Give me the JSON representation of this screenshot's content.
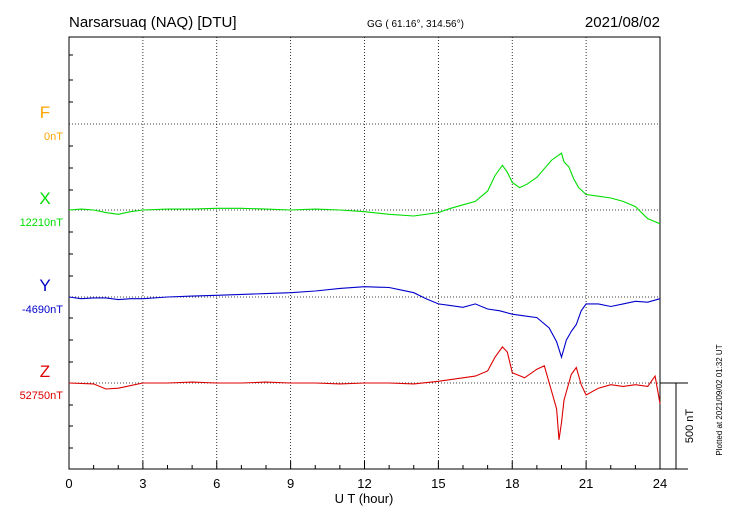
{
  "header": {
    "station": "Narsarsuaq (NAQ)  [DTU]",
    "coords": "GG ( 61.16°, 314.56°)",
    "date": "2021/08/02"
  },
  "footer": {
    "plotted": "Plotted at 2021/09/02 01:32 UT"
  },
  "chart_data": {
    "type": "line",
    "xlabel": "U T (hour)",
    "xlim": [
      0,
      24
    ],
    "xticks": [
      "0",
      "3",
      "6",
      "9",
      "12",
      "15",
      "18",
      "21",
      "24"
    ],
    "grid": true,
    "scale_bar": "500 nT",
    "series": [
      {
        "name": "F",
        "baseline_label": "0nT",
        "color": "#ffa500",
        "values": []
      },
      {
        "name": "X",
        "baseline_label": "12210nT",
        "color": "#00dd00",
        "x": [
          0,
          0.5,
          1,
          1.5,
          2,
          2.5,
          3,
          4,
          5,
          6,
          7,
          8,
          9,
          10,
          11,
          12,
          13,
          14,
          15,
          15.5,
          16,
          16.5,
          17,
          17.3,
          17.6,
          17.8,
          18,
          18.3,
          18.6,
          19,
          19.3,
          19.6,
          20,
          20.1,
          20.3,
          20.5,
          20.7,
          21,
          21.5,
          22,
          22.5,
          23,
          23.5,
          24
        ],
        "values": [
          0,
          5,
          0,
          -15,
          -25,
          -10,
          0,
          5,
          5,
          10,
          10,
          5,
          0,
          5,
          0,
          -10,
          -25,
          -35,
          -15,
          10,
          30,
          50,
          110,
          200,
          260,
          220,
          160,
          130,
          150,
          190,
          240,
          290,
          330,
          280,
          250,
          180,
          130,
          90,
          80,
          70,
          50,
          20,
          -50,
          -80
        ]
      },
      {
        "name": "Y",
        "baseline_label": "-4690nT",
        "color": "#0000cc",
        "x": [
          0,
          0.5,
          1,
          1.5,
          2,
          2.5,
          3,
          4,
          5,
          6,
          7,
          8,
          9,
          10,
          11,
          12,
          13,
          13.5,
          14,
          14.5,
          15,
          15.5,
          16,
          16.5,
          17,
          17.5,
          18,
          18.5,
          19,
          19.5,
          19.8,
          20,
          20.2,
          20.4,
          20.6,
          20.8,
          21,
          21.5,
          22,
          22.5,
          23,
          23.5,
          24
        ],
        "values": [
          0,
          -10,
          -5,
          -5,
          -15,
          -10,
          -10,
          0,
          5,
          10,
          15,
          20,
          25,
          35,
          50,
          60,
          55,
          40,
          25,
          -10,
          -40,
          -50,
          -60,
          -40,
          -70,
          -80,
          -100,
          -110,
          -120,
          -180,
          -260,
          -350,
          -250,
          -200,
          -160,
          -80,
          -40,
          -40,
          -55,
          -40,
          -25,
          -30,
          -10
        ]
      },
      {
        "name": "Z",
        "baseline_label": "52750nT",
        "color": "#dd0000",
        "x": [
          0,
          1,
          1.5,
          2,
          2.5,
          3,
          4,
          5,
          6,
          7,
          8,
          9,
          10,
          11,
          12,
          13,
          14,
          15,
          15.5,
          16,
          16.5,
          17,
          17.3,
          17.6,
          17.8,
          18,
          18.5,
          19,
          19.3,
          19.6,
          19.8,
          19.9,
          20,
          20.1,
          20.2,
          20.4,
          20.6,
          20.8,
          21,
          21.5,
          22,
          22.5,
          23,
          23.5,
          23.8,
          24
        ],
        "values": [
          0,
          -5,
          -35,
          -30,
          -15,
          0,
          0,
          5,
          0,
          0,
          5,
          0,
          0,
          -5,
          0,
          0,
          -5,
          10,
          20,
          30,
          40,
          70,
          150,
          210,
          180,
          60,
          30,
          80,
          100,
          -50,
          -150,
          -330,
          -230,
          -100,
          -50,
          50,
          90,
          -10,
          -70,
          -30,
          -10,
          -20,
          -10,
          -20,
          40,
          -120
        ]
      }
    ]
  }
}
